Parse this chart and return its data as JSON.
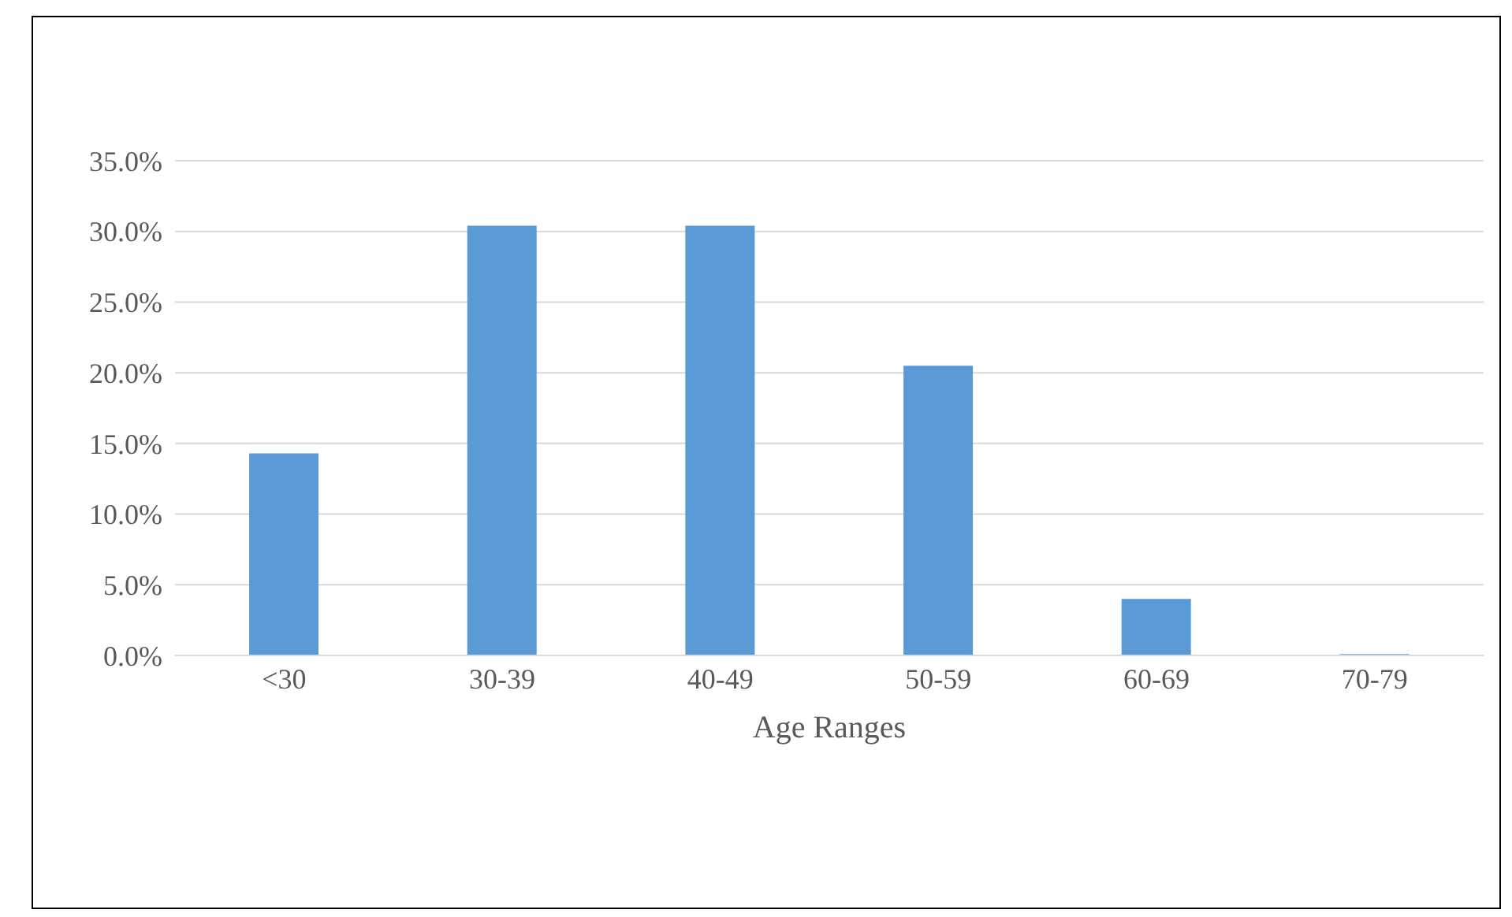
{
  "chart_data": {
    "type": "bar",
    "xlabel": "Age Ranges",
    "categories": [
      "<30",
      "30-39",
      "40-49",
      "50-59",
      "60-69",
      "70-79"
    ],
    "values": [
      14.3,
      30.4,
      30.4,
      20.5,
      4.0,
      0.1
    ],
    "color": "#5b9bd5",
    "ylim": [
      0,
      35
    ],
    "yticks": [
      {
        "value": 0,
        "label": "0.0%"
      },
      {
        "value": 5,
        "label": "5.0%"
      },
      {
        "value": 10,
        "label": "10.0%"
      },
      {
        "value": 15,
        "label": "15.0%"
      },
      {
        "value": 20,
        "label": "20.0%"
      },
      {
        "value": 25,
        "label": "25.0%"
      },
      {
        "value": 30,
        "label": "30.0%"
      },
      {
        "value": 35,
        "label": "35.0%"
      }
    ],
    "grid": "y",
    "legend": false
  }
}
